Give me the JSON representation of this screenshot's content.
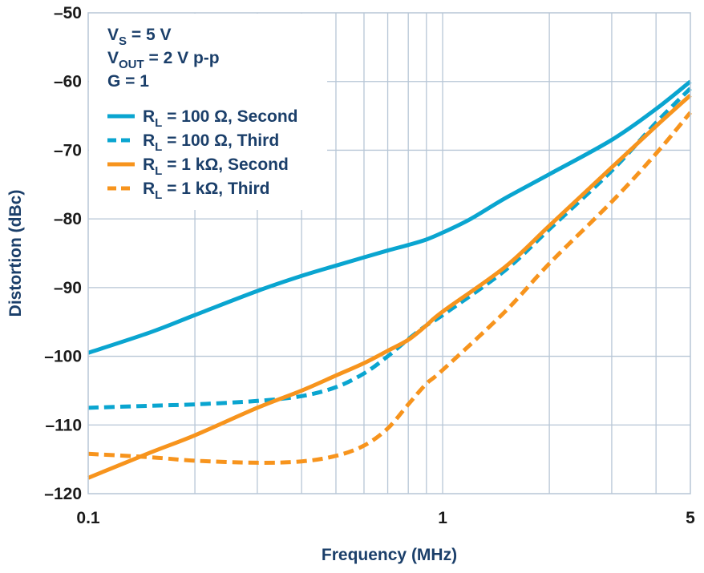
{
  "chart_data": {
    "type": "line",
    "xlabel": "Frequency (MHz)",
    "ylabel": "Distortion (dBc)",
    "x_scale": "log",
    "xlim": [
      0.1,
      5
    ],
    "ylim": [
      -120,
      -50
    ],
    "x_ticks": [
      {
        "value": 0.1,
        "label": "0.1"
      },
      {
        "value": 1,
        "label": "1"
      },
      {
        "value": 5,
        "label": "5"
      }
    ],
    "y_ticks": [
      {
        "value": -50,
        "label": "–50"
      },
      {
        "value": -60,
        "label": "–60"
      },
      {
        "value": -70,
        "label": "–70"
      },
      {
        "value": -80,
        "label": "–80"
      },
      {
        "value": -90,
        "label": "–90"
      },
      {
        "value": -100,
        "label": "–100"
      },
      {
        "value": -110,
        "label": "–110"
      },
      {
        "value": -120,
        "label": "–120"
      }
    ],
    "grid": true,
    "legend_position": "top-left",
    "annotations": [
      {
        "main": "V",
        "sub": "S",
        "rest": " = 5 V"
      },
      {
        "main": "V",
        "sub": "OUT",
        "rest": " = 2 V p-p"
      },
      {
        "main": "G = 1",
        "sub": "",
        "rest": ""
      }
    ],
    "series": [
      {
        "name_main": "R",
        "name_sub": "L",
        "name_rest": " = 100 Ω, Second",
        "color": "#0aa5d0",
        "dash": "solid",
        "points": [
          [
            0.1,
            -99.5
          ],
          [
            0.15,
            -96.5
          ],
          [
            0.2,
            -94
          ],
          [
            0.3,
            -90.5
          ],
          [
            0.4,
            -88.3
          ],
          [
            0.5,
            -86.8
          ],
          [
            0.6,
            -85.6
          ],
          [
            0.7,
            -84.6
          ],
          [
            0.8,
            -83.8
          ],
          [
            0.9,
            -83
          ],
          [
            1,
            -82
          ],
          [
            1.2,
            -80
          ],
          [
            1.5,
            -77
          ],
          [
            2,
            -73.5
          ],
          [
            3,
            -68.5
          ],
          [
            4,
            -64
          ],
          [
            5,
            -60
          ]
        ]
      },
      {
        "name_main": "R",
        "name_sub": "L",
        "name_rest": " = 100 Ω, Third",
        "color": "#0aa5d0",
        "dash": "dashed",
        "points": [
          [
            0.1,
            -107.5
          ],
          [
            0.15,
            -107.2
          ],
          [
            0.2,
            -107
          ],
          [
            0.3,
            -106.5
          ],
          [
            0.4,
            -105.8
          ],
          [
            0.5,
            -104.5
          ],
          [
            0.6,
            -102.5
          ],
          [
            0.7,
            -100
          ],
          [
            0.8,
            -97.5
          ],
          [
            0.9,
            -95.5
          ],
          [
            1,
            -94
          ],
          [
            1.5,
            -87.5
          ],
          [
            2,
            -81.5
          ],
          [
            3,
            -73
          ],
          [
            4,
            -66
          ],
          [
            5,
            -61
          ]
        ]
      },
      {
        "name_main": "R",
        "name_sub": "L",
        "name_rest": " = 1 kΩ, Second",
        "color": "#f7941d",
        "dash": "solid",
        "points": [
          [
            0.1,
            -117.7
          ],
          [
            0.15,
            -114
          ],
          [
            0.2,
            -111.5
          ],
          [
            0.3,
            -107.5
          ],
          [
            0.4,
            -105
          ],
          [
            0.5,
            -102.8
          ],
          [
            0.6,
            -101
          ],
          [
            0.7,
            -99.2
          ],
          [
            0.8,
            -97.6
          ],
          [
            0.9,
            -95.5
          ],
          [
            1,
            -93.5
          ],
          [
            1.5,
            -87
          ],
          [
            2,
            -81
          ],
          [
            3,
            -72.5
          ],
          [
            4,
            -66.5
          ],
          [
            5,
            -62
          ]
        ]
      },
      {
        "name_main": "R",
        "name_sub": "L",
        "name_rest": " = 1 kΩ, Third",
        "color": "#f7941d",
        "dash": "dashed",
        "points": [
          [
            0.1,
            -114.2
          ],
          [
            0.15,
            -114.7
          ],
          [
            0.2,
            -115.2
          ],
          [
            0.3,
            -115.5
          ],
          [
            0.4,
            -115.3
          ],
          [
            0.5,
            -114.5
          ],
          [
            0.6,
            -113
          ],
          [
            0.7,
            -110.5
          ],
          [
            0.8,
            -107
          ],
          [
            0.9,
            -104
          ],
          [
            1,
            -102
          ],
          [
            1.5,
            -93.5
          ],
          [
            2,
            -86.5
          ],
          [
            3,
            -77.5
          ],
          [
            4,
            -70.5
          ],
          [
            5,
            -64.5
          ]
        ]
      }
    ]
  }
}
